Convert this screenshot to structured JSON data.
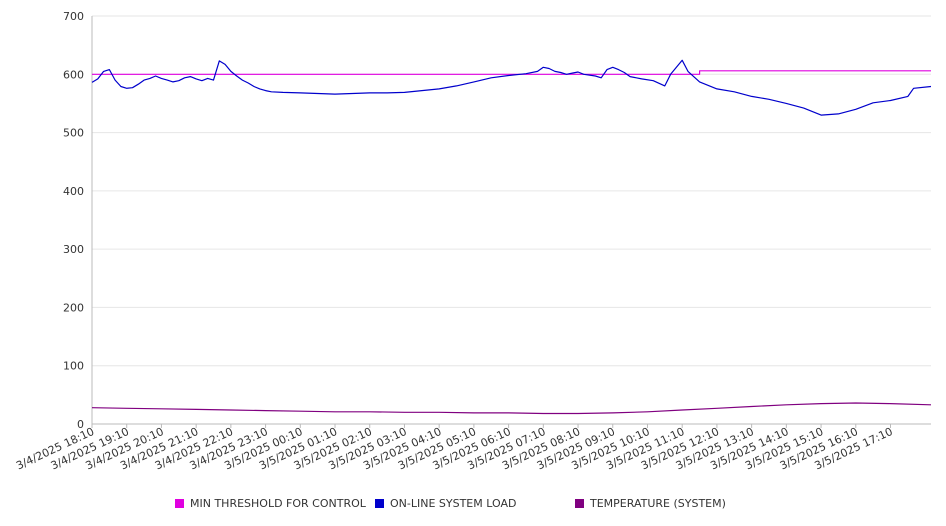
{
  "chart_data": {
    "type": "line",
    "title": "",
    "xlabel": "",
    "ylabel": "",
    "ylim": [
      0,
      700
    ],
    "yticks": [
      0,
      100,
      200,
      300,
      400,
      500,
      600,
      700
    ],
    "grid": true,
    "legend_position": "bottom",
    "x_start": "3/4/2025 18:10",
    "x_end": "3/5/2025 18:20",
    "x_tick_labels": [
      "3/4/2025 18:10",
      "3/4/2025 19:10",
      "3/4/2025 20:10",
      "3/4/2025 21:10",
      "3/4/2025 22:10",
      "3/4/2025 23:10",
      "3/5/2025 00:10",
      "3/5/2025 01:10",
      "3/5/2025 02:10",
      "3/5/2025 03:10",
      "3/5/2025 04:10",
      "3/5/2025 05:10",
      "3/5/2025 06:10",
      "3/5/2025 07:10",
      "3/5/2025 08:10",
      "3/5/2025 09:10",
      "3/5/2025 10:10",
      "3/5/2025 11:10",
      "3/5/2025 12:10",
      "3/5/2025 13:10",
      "3/5/2025 14:10",
      "3/5/2025 15:10",
      "3/5/2025 16:10",
      "3/5/2025 17:10"
    ],
    "series": [
      {
        "name": "MIN THRESHOLD FOR CONTROL",
        "color": "#E000E0",
        "points": [
          [
            "3/4/2025 18:10",
            600
          ],
          [
            "3/5/2025 11:10",
            600
          ],
          [
            "3/5/2025 11:40",
            600
          ],
          [
            "3/5/2025 11:40",
            606
          ],
          [
            "3/5/2025 18:20",
            606
          ]
        ]
      },
      {
        "name": "ON-LINE SYSTEM LOAD",
        "color": "#0000CC",
        "points": [
          [
            "3/4/2025 18:10",
            586
          ],
          [
            "3/4/2025 18:20",
            592
          ],
          [
            "3/4/2025 18:30",
            605
          ],
          [
            "3/4/2025 18:40",
            608
          ],
          [
            "3/4/2025 18:50",
            590
          ],
          [
            "3/4/2025 19:00",
            579
          ],
          [
            "3/4/2025 19:10",
            576
          ],
          [
            "3/4/2025 19:20",
            577
          ],
          [
            "3/4/2025 19:30",
            583
          ],
          [
            "3/4/2025 19:40",
            590
          ],
          [
            "3/4/2025 19:50",
            593
          ],
          [
            "3/4/2025 20:00",
            597
          ],
          [
            "3/4/2025 20:10",
            593
          ],
          [
            "3/4/2025 20:20",
            590
          ],
          [
            "3/4/2025 20:30",
            587
          ],
          [
            "3/4/2025 20:40",
            589
          ],
          [
            "3/4/2025 20:50",
            594
          ],
          [
            "3/4/2025 21:00",
            596
          ],
          [
            "3/4/2025 21:10",
            592
          ],
          [
            "3/4/2025 21:20",
            589
          ],
          [
            "3/4/2025 21:30",
            593
          ],
          [
            "3/4/2025 21:40",
            590
          ],
          [
            "3/4/2025 21:50",
            623
          ],
          [
            "3/4/2025 22:00",
            617
          ],
          [
            "3/4/2025 22:10",
            605
          ],
          [
            "3/4/2025 22:20",
            597
          ],
          [
            "3/4/2025 22:30",
            590
          ],
          [
            "3/4/2025 22:40",
            585
          ],
          [
            "3/4/2025 22:50",
            579
          ],
          [
            "3/4/2025 23:00",
            575
          ],
          [
            "3/4/2025 23:10",
            572
          ],
          [
            "3/4/2025 23:20",
            570
          ],
          [
            "3/4/2025 23:40",
            569
          ],
          [
            "3/5/2025 00:10",
            568
          ],
          [
            "3/5/2025 00:40",
            567
          ],
          [
            "3/5/2025 01:10",
            566
          ],
          [
            "3/5/2025 01:40",
            567
          ],
          [
            "3/5/2025 02:10",
            568
          ],
          [
            "3/5/2025 02:40",
            568
          ],
          [
            "3/5/2025 03:10",
            569
          ],
          [
            "3/5/2025 03:40",
            572
          ],
          [
            "3/5/2025 04:10",
            575
          ],
          [
            "3/5/2025 04:40",
            580
          ],
          [
            "3/5/2025 05:10",
            587
          ],
          [
            "3/5/2025 05:40",
            594
          ],
          [
            "3/5/2025 06:10",
            598
          ],
          [
            "3/5/2025 06:40",
            601
          ],
          [
            "3/5/2025 07:00",
            605
          ],
          [
            "3/5/2025 07:10",
            612
          ],
          [
            "3/5/2025 07:20",
            610
          ],
          [
            "3/5/2025 07:30",
            605
          ],
          [
            "3/5/2025 07:40",
            603
          ],
          [
            "3/5/2025 07:50",
            600
          ],
          [
            "3/5/2025 08:00",
            602
          ],
          [
            "3/5/2025 08:10",
            604
          ],
          [
            "3/5/2025 08:20",
            600
          ],
          [
            "3/5/2025 08:40",
            597
          ],
          [
            "3/5/2025 08:50",
            594
          ],
          [
            "3/5/2025 09:00",
            608
          ],
          [
            "3/5/2025 09:10",
            612
          ],
          [
            "3/5/2025 09:20",
            608
          ],
          [
            "3/5/2025 09:30",
            603
          ],
          [
            "3/5/2025 09:40",
            596
          ],
          [
            "3/5/2025 10:00",
            592
          ],
          [
            "3/5/2025 10:20",
            589
          ],
          [
            "3/5/2025 10:40",
            580
          ],
          [
            "3/5/2025 10:50",
            600
          ],
          [
            "3/5/2025 11:00",
            612
          ],
          [
            "3/5/2025 11:10",
            624
          ],
          [
            "3/5/2025 11:20",
            605
          ],
          [
            "3/5/2025 11:40",
            587
          ],
          [
            "3/5/2025 12:10",
            575
          ],
          [
            "3/5/2025 12:40",
            570
          ],
          [
            "3/5/2025 13:10",
            562
          ],
          [
            "3/5/2025 13:40",
            557
          ],
          [
            "3/5/2025 14:10",
            550
          ],
          [
            "3/5/2025 14:40",
            542
          ],
          [
            "3/5/2025 15:10",
            530
          ],
          [
            "3/5/2025 15:40",
            532
          ],
          [
            "3/5/2025 16:10",
            540
          ],
          [
            "3/5/2025 16:40",
            551
          ],
          [
            "3/5/2025 17:10",
            555
          ],
          [
            "3/5/2025 17:40",
            562
          ],
          [
            "3/5/2025 17:50",
            576
          ],
          [
            "3/5/2025 18:20",
            579
          ]
        ]
      },
      {
        "name": "TEMPERATURE (SYSTEM)",
        "color": "#800080",
        "points": [
          [
            "3/4/2025 18:10",
            28
          ],
          [
            "3/4/2025 19:10",
            27
          ],
          [
            "3/4/2025 20:10",
            26
          ],
          [
            "3/4/2025 21:10",
            25
          ],
          [
            "3/4/2025 22:10",
            24
          ],
          [
            "3/4/2025 23:10",
            23
          ],
          [
            "3/5/2025 00:10",
            22
          ],
          [
            "3/5/2025 01:10",
            21
          ],
          [
            "3/5/2025 02:10",
            21
          ],
          [
            "3/5/2025 03:10",
            20
          ],
          [
            "3/5/2025 04:10",
            20
          ],
          [
            "3/5/2025 05:10",
            19
          ],
          [
            "3/5/2025 06:10",
            19
          ],
          [
            "3/5/2025 07:10",
            18
          ],
          [
            "3/5/2025 08:10",
            18
          ],
          [
            "3/5/2025 09:10",
            19
          ],
          [
            "3/5/2025 10:10",
            21
          ],
          [
            "3/5/2025 11:10",
            24
          ],
          [
            "3/5/2025 12:10",
            27
          ],
          [
            "3/5/2025 13:10",
            30
          ],
          [
            "3/5/2025 14:10",
            33
          ],
          [
            "3/5/2025 15:10",
            35
          ],
          [
            "3/5/2025 16:10",
            36
          ],
          [
            "3/5/2025 17:10",
            35
          ],
          [
            "3/5/2025 18:20",
            33
          ]
        ]
      }
    ]
  }
}
